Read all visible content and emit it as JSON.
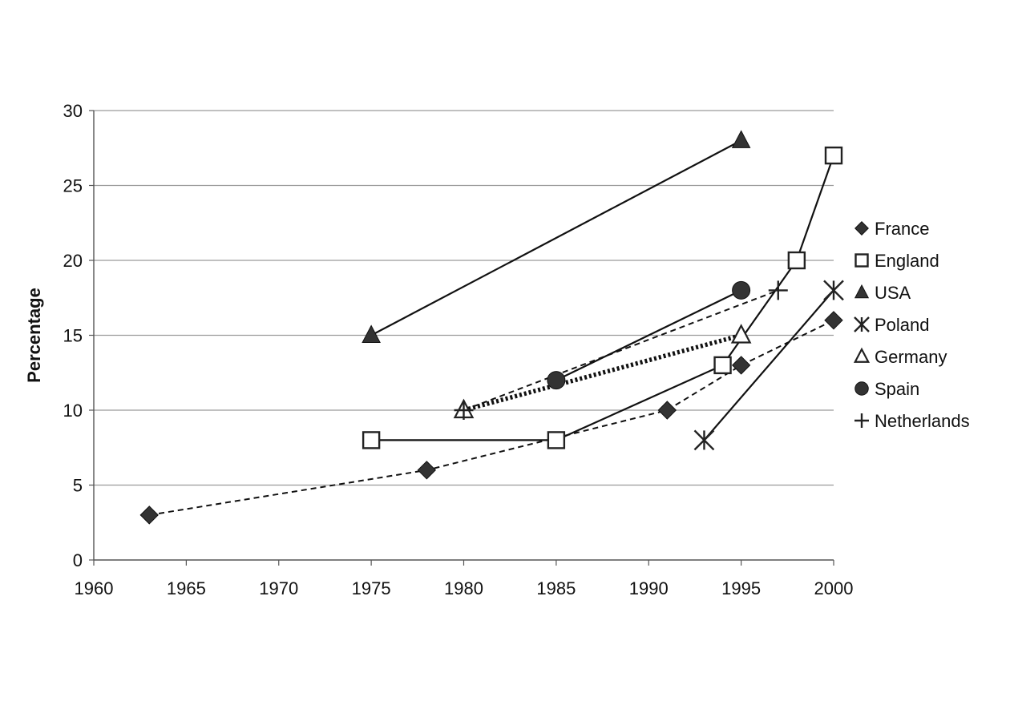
{
  "chart_data": {
    "type": "line",
    "title": "",
    "xlabel": "",
    "ylabel": "Percentage",
    "xlim": [
      1960,
      2000
    ],
    "ylim": [
      0,
      30
    ],
    "x_ticks": [
      "1960",
      "1965",
      "1970",
      "1975",
      "1980",
      "1985",
      "1990",
      "1995",
      "2000"
    ],
    "y_ticks": [
      "0",
      "5",
      "10",
      "15",
      "20",
      "25",
      "30"
    ],
    "grid": "horizontal",
    "legend_position": "right",
    "series": [
      {
        "name": "France",
        "marker": "diamond",
        "line": "dashed",
        "points": [
          [
            1963,
            3
          ],
          [
            1978,
            6
          ],
          [
            1991,
            10
          ],
          [
            1995,
            13
          ],
          [
            2000,
            16
          ]
        ]
      },
      {
        "name": "England",
        "marker": "square-open",
        "line": "solid",
        "points": [
          [
            1975,
            8
          ],
          [
            1985,
            8
          ],
          [
            1994,
            13
          ],
          [
            1998,
            20
          ],
          [
            2000,
            27
          ]
        ]
      },
      {
        "name": "USA",
        "marker": "triangle-filled",
        "line": "solid",
        "points": [
          [
            1975,
            15
          ],
          [
            1995,
            28
          ]
        ]
      },
      {
        "name": "Poland",
        "marker": "asterisk",
        "line": "solid",
        "points": [
          [
            1993,
            8
          ],
          [
            2000,
            18
          ]
        ]
      },
      {
        "name": "Germany",
        "marker": "triangle-open",
        "line": "dotted-bold",
        "points": [
          [
            1980,
            10
          ],
          [
            1995,
            15
          ]
        ]
      },
      {
        "name": "Spain",
        "marker": "circle-filled",
        "line": "solid",
        "points": [
          [
            1985,
            12
          ],
          [
            1995,
            18
          ]
        ]
      },
      {
        "name": "Netherlands",
        "marker": "plus",
        "line": "dashed",
        "points": [
          [
            1980,
            10
          ],
          [
            1997,
            18
          ]
        ]
      }
    ]
  }
}
